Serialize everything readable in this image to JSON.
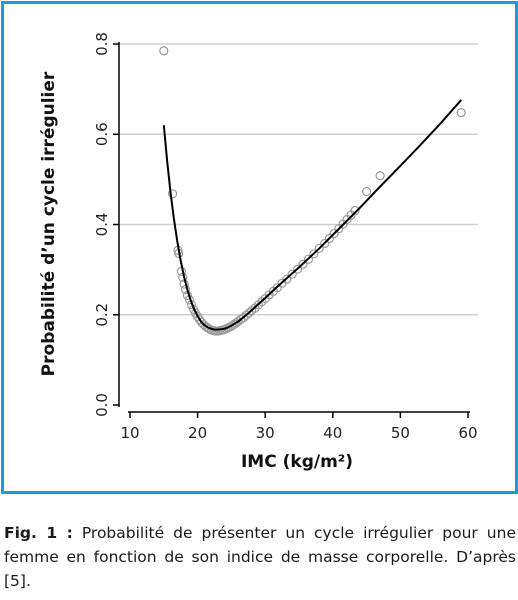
{
  "chart_data": {
    "type": "scatter",
    "xlabel": "IMC (kg/m²)",
    "ylabel": "Probabilité d’un cycle irrégulier",
    "xlim": [
      10,
      60
    ],
    "ylim": [
      0,
      0.8
    ],
    "x_ticks": [
      10,
      20,
      30,
      40,
      50,
      60
    ],
    "y_ticks": [
      0,
      0.2,
      0.4,
      0.6,
      0.8
    ],
    "x_tick_labels": [
      "10",
      "20",
      "30",
      "40",
      "50",
      "60"
    ],
    "y_tick_labels": [
      "0.0",
      "0.2",
      "0.4",
      "0.6",
      "0.8"
    ],
    "grid": "horizontal",
    "series": [
      {
        "kind": "points",
        "color": "#9a9a9a",
        "points": [
          [
            15.0,
            0.785
          ],
          [
            16.3,
            0.468
          ],
          [
            17.1,
            0.343
          ],
          [
            17.2,
            0.336
          ],
          [
            17.6,
            0.296
          ],
          [
            17.8,
            0.283
          ],
          [
            18.0,
            0.268
          ],
          [
            18.2,
            0.256
          ],
          [
            18.5,
            0.243
          ],
          [
            18.8,
            0.233
          ],
          [
            19.1,
            0.222
          ],
          [
            19.4,
            0.212
          ],
          [
            19.7,
            0.204
          ],
          [
            20.0,
            0.196
          ],
          [
            20.3,
            0.189
          ],
          [
            20.6,
            0.183
          ],
          [
            20.9,
            0.178
          ],
          [
            21.2,
            0.174
          ],
          [
            21.5,
            0.171
          ],
          [
            21.8,
            0.168
          ],
          [
            22.1,
            0.166
          ],
          [
            22.4,
            0.165
          ],
          [
            22.7,
            0.164
          ],
          [
            23.0,
            0.164
          ],
          [
            23.3,
            0.165
          ],
          [
            23.6,
            0.166
          ],
          [
            23.9,
            0.167
          ],
          [
            24.2,
            0.169
          ],
          [
            24.5,
            0.171
          ],
          [
            24.8,
            0.173
          ],
          [
            25.1,
            0.176
          ],
          [
            25.4,
            0.179
          ],
          [
            25.7,
            0.182
          ],
          [
            26.0,
            0.185
          ],
          [
            26.4,
            0.19
          ],
          [
            26.8,
            0.194
          ],
          [
            27.2,
            0.199
          ],
          [
            27.6,
            0.204
          ],
          [
            28.0,
            0.209
          ],
          [
            28.5,
            0.215
          ],
          [
            29.0,
            0.222
          ],
          [
            29.5,
            0.229
          ],
          [
            30.0,
            0.236
          ],
          [
            30.6,
            0.244
          ],
          [
            31.2,
            0.252
          ],
          [
            31.8,
            0.26
          ],
          [
            32.5,
            0.27
          ],
          [
            33.2,
            0.279
          ],
          [
            34.0,
            0.29
          ],
          [
            34.8,
            0.301
          ],
          [
            35.6,
            0.312
          ],
          [
            36.4,
            0.323
          ],
          [
            37.2,
            0.335
          ],
          [
            38.0,
            0.347
          ],
          [
            38.8,
            0.358
          ],
          [
            39.5,
            0.369
          ],
          [
            40.2,
            0.38
          ],
          [
            40.9,
            0.391
          ],
          [
            41.5,
            0.401
          ],
          [
            42.1,
            0.411
          ],
          [
            42.7,
            0.421
          ],
          [
            43.3,
            0.431
          ],
          [
            45.0,
            0.473
          ],
          [
            47.0,
            0.508
          ],
          [
            59.0,
            0.648
          ]
        ]
      },
      {
        "kind": "line",
        "color": "#000000",
        "points": [
          [
            15.0,
            0.62
          ],
          [
            15.5,
            0.54
          ],
          [
            16.0,
            0.47
          ],
          [
            16.5,
            0.412
          ],
          [
            17.0,
            0.362
          ],
          [
            17.5,
            0.32
          ],
          [
            18.0,
            0.284
          ],
          [
            18.5,
            0.255
          ],
          [
            19.0,
            0.231
          ],
          [
            19.5,
            0.212
          ],
          [
            20.0,
            0.197
          ],
          [
            20.5,
            0.185
          ],
          [
            21.0,
            0.177
          ],
          [
            21.5,
            0.172
          ],
          [
            22.0,
            0.169
          ],
          [
            22.5,
            0.167
          ],
          [
            23.0,
            0.167
          ],
          [
            23.5,
            0.168
          ],
          [
            24.0,
            0.169
          ],
          [
            24.5,
            0.172
          ],
          [
            25.0,
            0.176
          ],
          [
            26.0,
            0.185
          ],
          [
            27.0,
            0.197
          ],
          [
            28.0,
            0.21
          ],
          [
            30.0,
            0.237
          ],
          [
            32.0,
            0.265
          ],
          [
            35.0,
            0.305
          ],
          [
            38.0,
            0.347
          ],
          [
            41.0,
            0.392
          ],
          [
            44.0,
            0.437
          ],
          [
            47.0,
            0.484
          ],
          [
            50.0,
            0.53
          ],
          [
            53.0,
            0.577
          ],
          [
            56.0,
            0.625
          ],
          [
            59.0,
            0.676
          ]
        ]
      }
    ]
  },
  "caption": {
    "label": "Fig. 1 :",
    "text": " Probabilité de présenter un cycle irrégulier pour une femme en fonction de son indice de masse corporelle. D’après [5]."
  }
}
